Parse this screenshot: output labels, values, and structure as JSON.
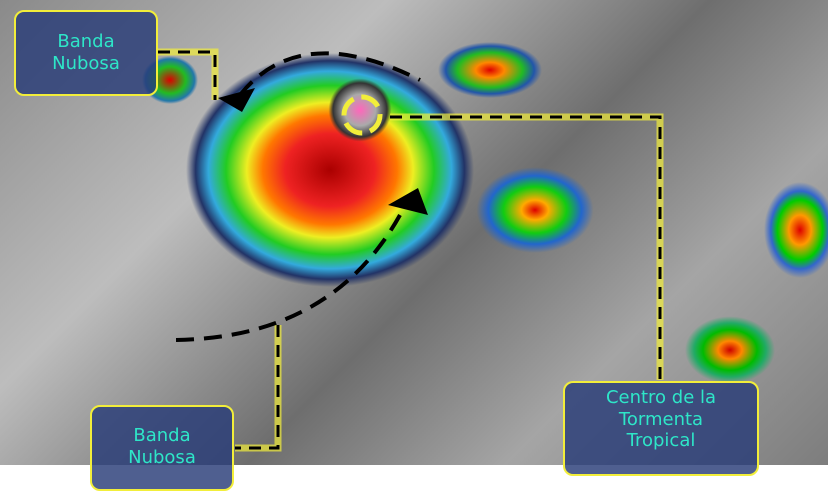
{
  "labels": {
    "band_top": [
      "Banda",
      "Nubosa"
    ],
    "band_bottom": [
      "Banda",
      "Nubosa"
    ],
    "center": [
      "Centro de la",
      "Tormenta",
      "Tropical"
    ]
  },
  "colors": {
    "label_border": "#f2ee3a",
    "label_text": "#2ee6c8",
    "label_bg": "#283c78",
    "leader_line": "#f2ee3a",
    "arrow": "#000000"
  }
}
